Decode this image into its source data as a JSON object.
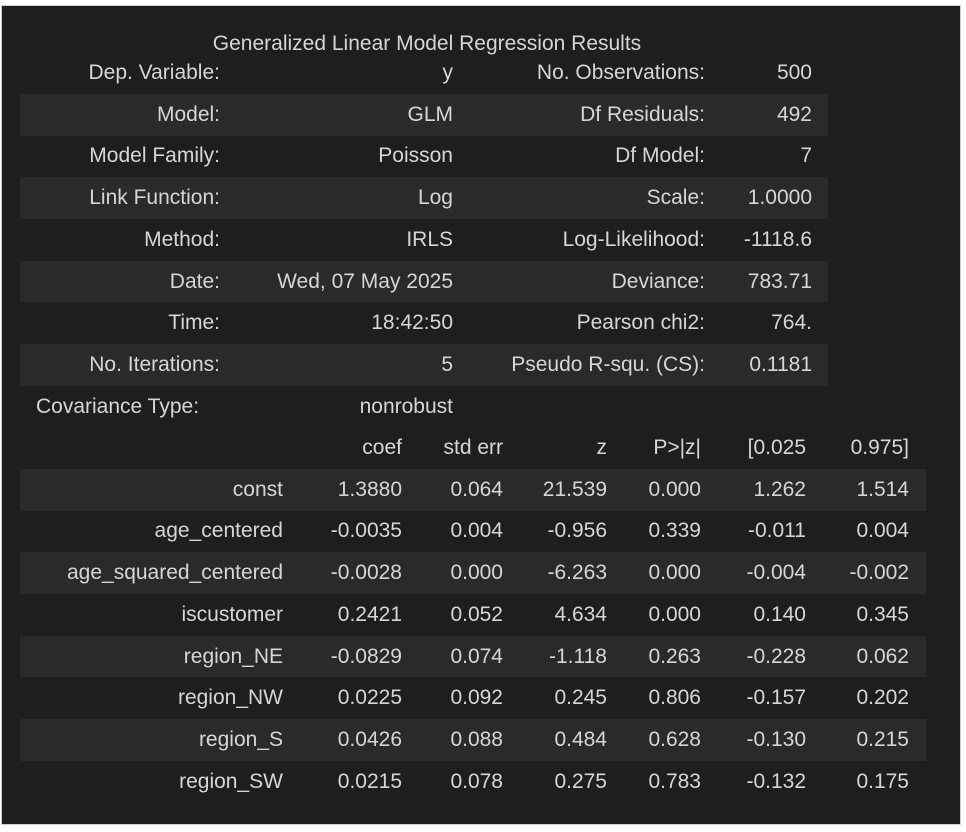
{
  "summary": {
    "title": "Generalized Linear Model Regression Results",
    "rows": [
      {
        "l1": "Dep. Variable:",
        "v1": "y",
        "l2": "No. Observations:",
        "v2": "500"
      },
      {
        "l1": "Model:",
        "v1": "GLM",
        "l2": "Df Residuals:",
        "v2": "492"
      },
      {
        "l1": "Model Family:",
        "v1": "Poisson",
        "l2": "Df Model:",
        "v2": "7"
      },
      {
        "l1": "Link Function:",
        "v1": "Log",
        "l2": "Scale:",
        "v2": "1.0000"
      },
      {
        "l1": "Method:",
        "v1": "IRLS",
        "l2": "Log-Likelihood:",
        "v2": "-1118.6"
      },
      {
        "l1": "Date:",
        "v1": "Wed, 07 May 2025",
        "l2": "Deviance:",
        "v2": "783.71"
      },
      {
        "l1": "Time:",
        "v1": "18:42:50",
        "l2": "Pearson chi2:",
        "v2": "764."
      },
      {
        "l1": "No. Iterations:",
        "v1": "5",
        "l2": "Pseudo R-squ. (CS):",
        "v2": "0.1181"
      },
      {
        "l1": "Covariance Type:",
        "v1": "nonrobust",
        "l2": "",
        "v2": ""
      }
    ]
  },
  "coefficients": {
    "headers": [
      "coef",
      "std err",
      "z",
      "P>|z|",
      "[0.025",
      "0.975]"
    ],
    "rows": [
      {
        "name": "const",
        "values": [
          "1.3880",
          "0.064",
          "21.539",
          "0.000",
          "1.262",
          "1.514"
        ]
      },
      {
        "name": "age_centered",
        "values": [
          "-0.0035",
          "0.004",
          "-0.956",
          "0.339",
          "-0.011",
          "0.004"
        ]
      },
      {
        "name": "age_squared_centered",
        "values": [
          "-0.0028",
          "0.000",
          "-6.263",
          "0.000",
          "-0.004",
          "-0.002"
        ]
      },
      {
        "name": "iscustomer",
        "values": [
          "0.2421",
          "0.052",
          "4.634",
          "0.000",
          "0.140",
          "0.345"
        ]
      },
      {
        "name": "region_NE",
        "values": [
          "-0.0829",
          "0.074",
          "-1.118",
          "0.263",
          "-0.228",
          "0.062"
        ]
      },
      {
        "name": "region_NW",
        "values": [
          "0.0225",
          "0.092",
          "0.245",
          "0.806",
          "-0.157",
          "0.202"
        ]
      },
      {
        "name": "region_S",
        "values": [
          "0.0426",
          "0.088",
          "0.484",
          "0.628",
          "-0.130",
          "0.215"
        ]
      },
      {
        "name": "region_SW",
        "values": [
          "0.0215",
          "0.078",
          "0.275",
          "0.783",
          "-0.132",
          "0.175"
        ]
      }
    ]
  },
  "colors": {
    "background": "#1e1e1e",
    "stripe": "#2a2a2b",
    "text": "#d6d6d6"
  }
}
